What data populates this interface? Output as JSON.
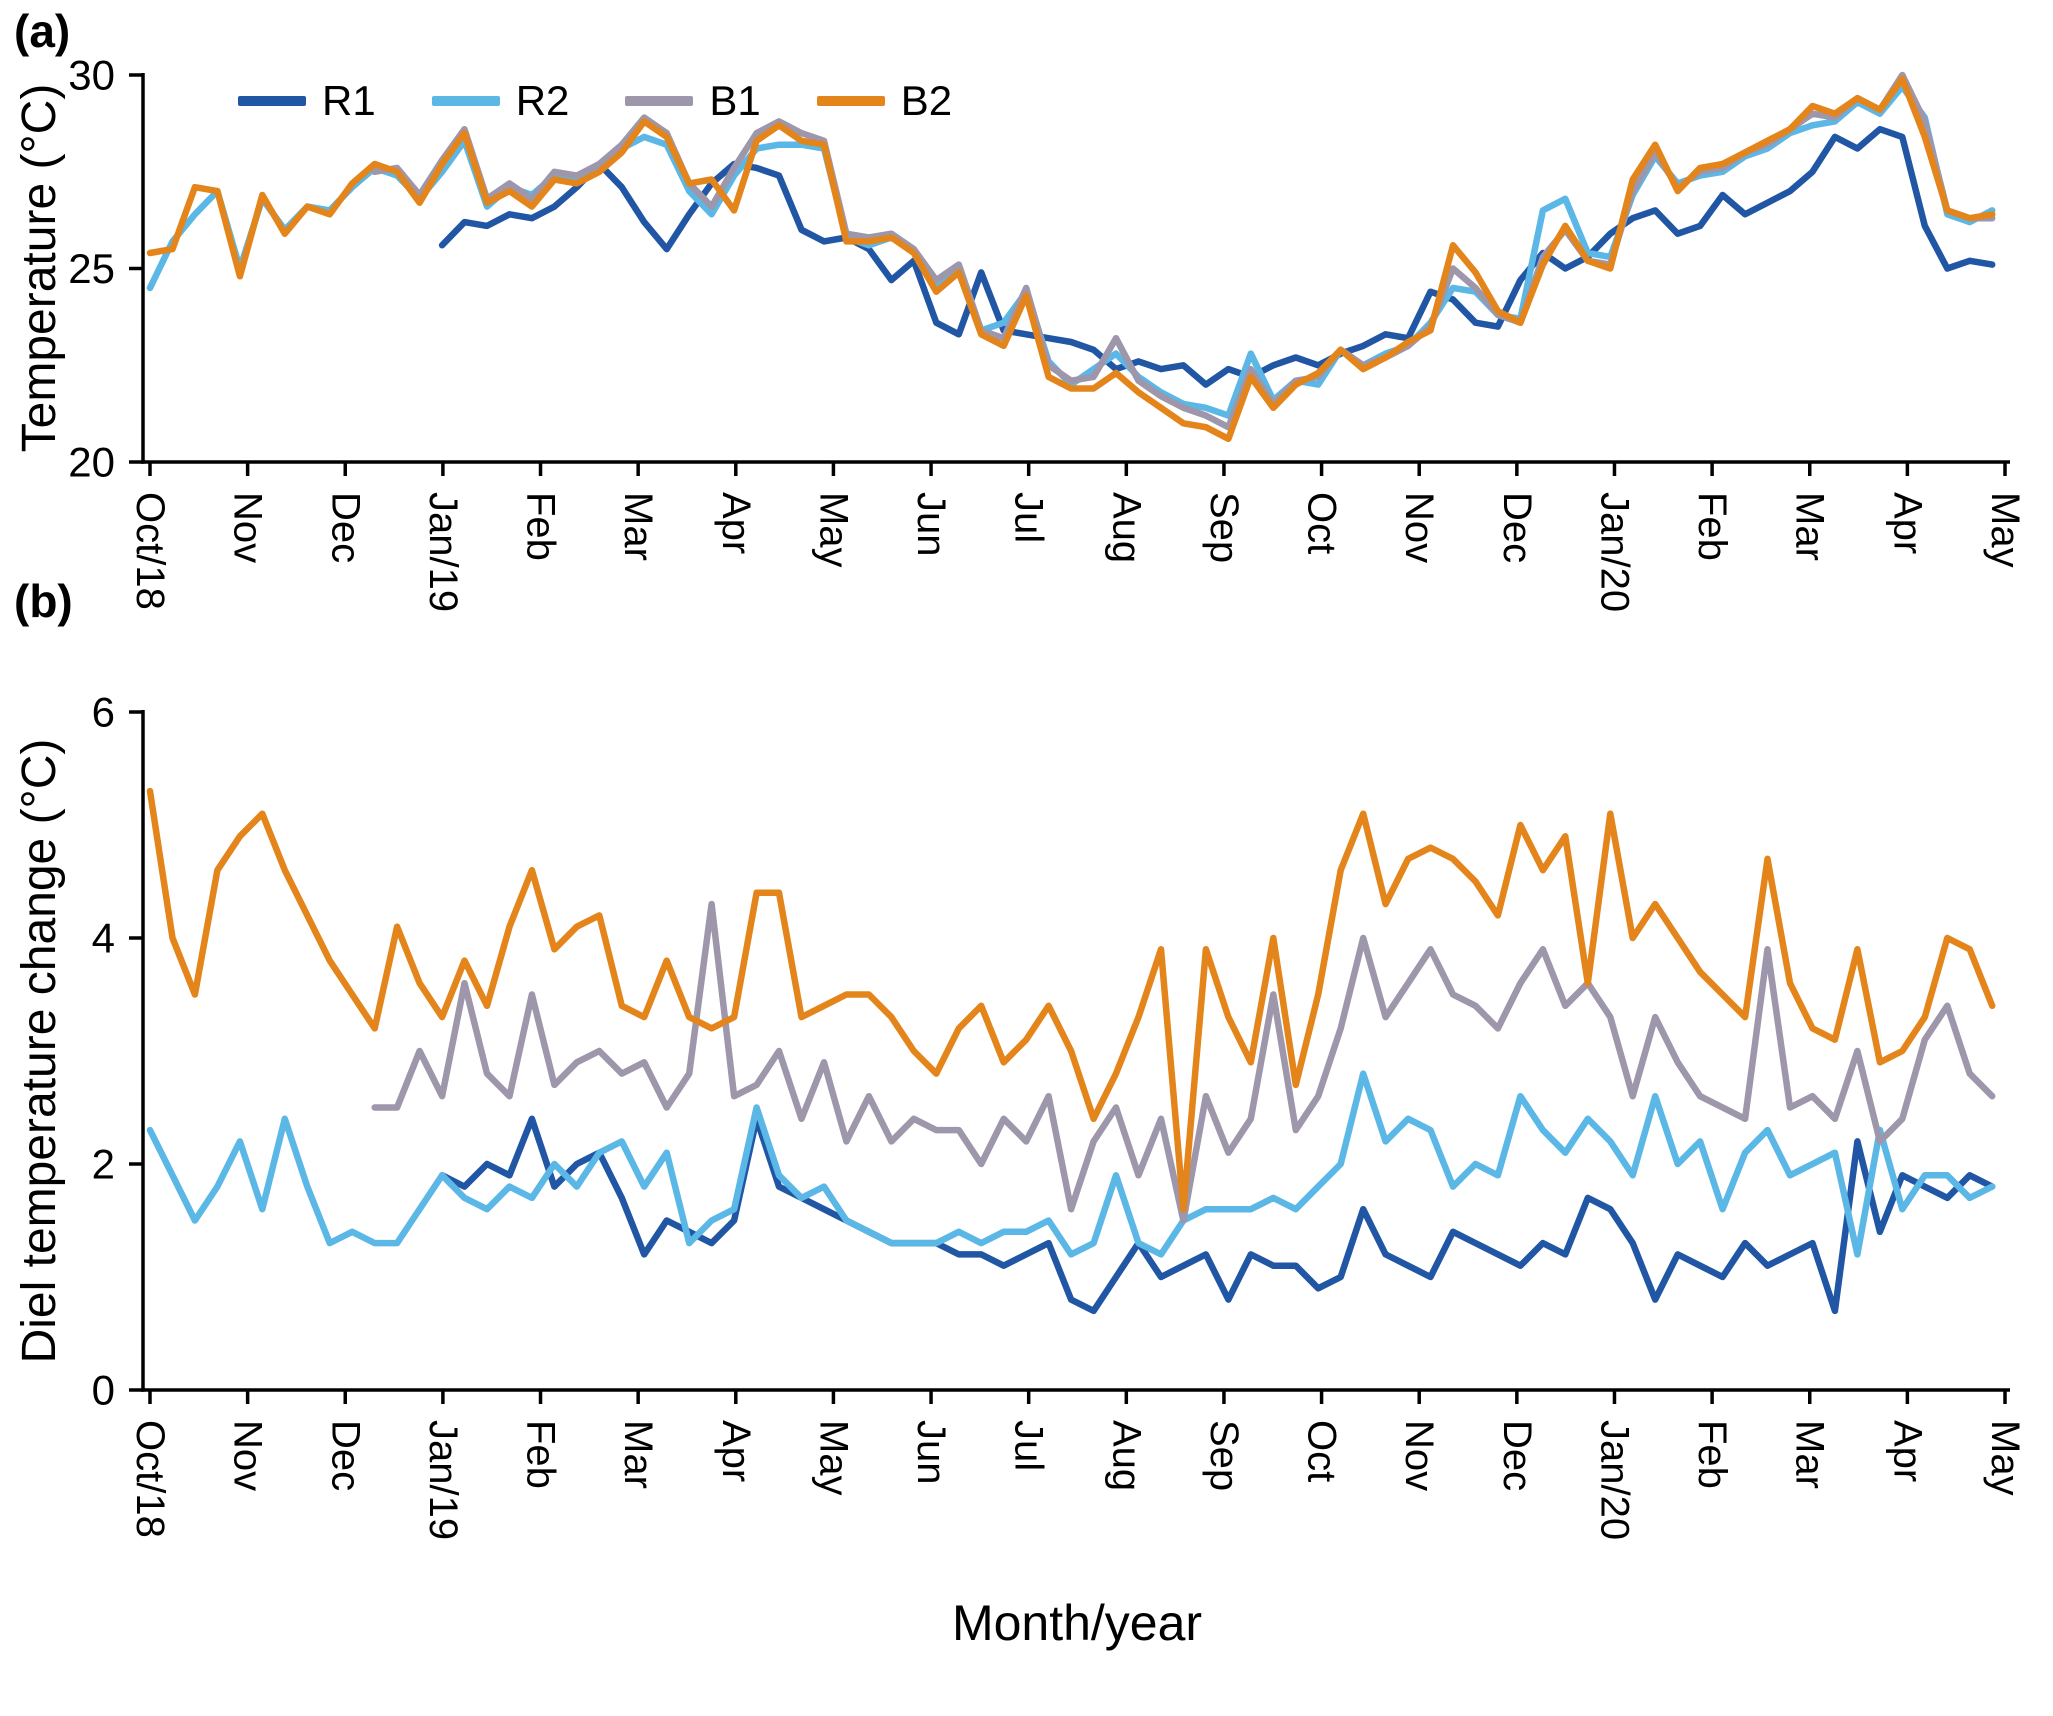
{
  "figure": {
    "panel_a_label": "(a)",
    "panel_b_label": "(b)",
    "xlabel": "Month/year"
  },
  "x_tick_labels": [
    "Oct/18",
    "Nov",
    "Dec",
    "Jan/19",
    "Feb",
    "Mar",
    "Apr",
    "May",
    "Jun",
    "Jul",
    "Aug",
    "Sep",
    "Oct",
    "Nov",
    "Dec",
    "Jan/20",
    "Feb",
    "Mar",
    "Apr",
    "May"
  ],
  "chart_data": [
    {
      "type": "line",
      "panel": "a",
      "title": "",
      "xlabel": "Month/year",
      "ylabel": "Temperature (°C)",
      "ylim": [
        20,
        30
      ],
      "yticks": [
        20,
        25,
        30
      ],
      "x_tick_labels": [
        "Oct/18",
        "Nov",
        "Dec",
        "Jan/19",
        "Feb",
        "Mar",
        "Apr",
        "May",
        "Jun",
        "Jul",
        "Aug",
        "Sep",
        "Oct",
        "Nov",
        "Dec",
        "Jan/20",
        "Feb",
        "Mar",
        "Apr",
        "May"
      ],
      "sampling": "weekly",
      "legend_position": "top-left",
      "grid": false,
      "series": [
        {
          "name": "R1",
          "color": "#2156a5",
          "values": [
            null,
            null,
            null,
            null,
            null,
            null,
            null,
            null,
            null,
            null,
            null,
            null,
            null,
            25.6,
            26.2,
            26.1,
            26.4,
            26.3,
            26.6,
            27.1,
            27.7,
            27.1,
            26.2,
            25.5,
            26.4,
            27.2,
            27.7,
            27.6,
            27.4,
            26.0,
            25.7,
            25.8,
            25.5,
            24.7,
            25.2,
            23.6,
            23.3,
            24.9,
            23.4,
            23.3,
            23.2,
            23.1,
            22.9,
            22.4,
            22.6,
            22.4,
            22.5,
            22.0,
            22.4,
            22.2,
            22.5,
            22.7,
            22.5,
            22.8,
            23.0,
            23.3,
            23.2,
            24.4,
            24.2,
            23.6,
            23.5,
            24.7,
            25.4,
            25.0,
            25.3,
            25.9,
            26.3,
            26.5,
            25.9,
            26.1,
            26.9,
            26.4,
            26.7,
            27.0,
            27.5,
            28.4,
            28.1,
            28.6,
            28.4,
            26.1,
            25.0,
            25.2,
            25.1
          ]
        },
        {
          "name": "R2",
          "color": "#5bb7e6",
          "values": [
            24.5,
            25.7,
            26.4,
            27.0,
            25.0,
            26.8,
            26.0,
            26.6,
            26.5,
            27.1,
            27.6,
            27.4,
            26.8,
            27.5,
            28.3,
            26.6,
            27.1,
            26.9,
            27.4,
            27.3,
            27.6,
            28.1,
            28.4,
            28.2,
            27.0,
            26.4,
            27.4,
            28.1,
            28.2,
            28.2,
            28.1,
            25.8,
            25.6,
            25.8,
            25.5,
            24.6,
            25.0,
            23.4,
            23.6,
            24.4,
            22.6,
            22.0,
            22.4,
            22.8,
            22.2,
            21.8,
            21.5,
            21.4,
            21.2,
            22.8,
            21.6,
            22.1,
            22.0,
            22.9,
            22.5,
            22.8,
            23.0,
            23.6,
            24.5,
            24.4,
            23.8,
            23.7,
            26.5,
            26.8,
            25.4,
            25.3,
            26.9,
            27.9,
            27.2,
            27.4,
            27.5,
            27.9,
            28.1,
            28.5,
            28.7,
            28.8,
            29.3,
            29.0,
            29.7,
            28.9,
            26.4,
            26.2,
            26.5
          ]
        },
        {
          "name": "B1",
          "color": "#9e96aa",
          "values": [
            null,
            null,
            null,
            null,
            null,
            null,
            null,
            null,
            null,
            null,
            27.5,
            27.6,
            26.9,
            27.8,
            28.6,
            26.8,
            27.2,
            26.8,
            27.5,
            27.4,
            27.7,
            28.2,
            28.9,
            28.5,
            27.2,
            26.6,
            27.6,
            28.5,
            28.8,
            28.5,
            28.3,
            25.9,
            25.8,
            25.9,
            25.5,
            24.7,
            25.1,
            23.4,
            23.2,
            24.5,
            22.5,
            22.1,
            22.2,
            23.2,
            22.1,
            21.7,
            21.4,
            21.2,
            20.9,
            22.4,
            21.5,
            22.1,
            22.2,
            22.9,
            22.5,
            22.7,
            23.0,
            23.5,
            25.0,
            24.5,
            23.8,
            23.6,
            25.3,
            26.0,
            25.2,
            25.1,
            27.0,
            28.0,
            27.1,
            27.5,
            27.6,
            28.0,
            28.2,
            28.6,
            29.0,
            28.9,
            29.4,
            29.1,
            30.0,
            28.8,
            26.5,
            26.3,
            26.3
          ]
        },
        {
          "name": "B2",
          "color": "#e3851b",
          "values": [
            25.4,
            25.5,
            27.1,
            27.0,
            24.8,
            26.9,
            25.9,
            26.6,
            26.4,
            27.2,
            27.7,
            27.5,
            26.7,
            27.7,
            28.5,
            26.7,
            27.0,
            26.6,
            27.3,
            27.2,
            27.5,
            28.0,
            28.8,
            28.4,
            27.2,
            27.3,
            26.5,
            28.3,
            28.7,
            28.3,
            28.2,
            25.7,
            25.7,
            25.8,
            25.4,
            24.4,
            24.9,
            23.3,
            23.0,
            24.3,
            22.2,
            21.9,
            21.9,
            22.3,
            21.8,
            21.4,
            21.0,
            20.9,
            20.6,
            22.2,
            21.4,
            22.0,
            22.3,
            22.9,
            22.4,
            22.7,
            23.1,
            23.4,
            25.6,
            24.9,
            23.9,
            23.6,
            25.1,
            26.1,
            25.2,
            25.0,
            27.3,
            28.2,
            27.0,
            27.6,
            27.7,
            28.0,
            28.3,
            28.6,
            29.2,
            29.0,
            29.4,
            29.1,
            29.9,
            28.4,
            26.5,
            26.3,
            26.4
          ]
        }
      ]
    },
    {
      "type": "line",
      "panel": "b",
      "title": "",
      "xlabel": "Month/year",
      "ylabel": "Diel temperature change (°C)",
      "ylim": [
        0,
        6
      ],
      "yticks": [
        0,
        2,
        4,
        6
      ],
      "x_tick_labels": [
        "Oct/18",
        "Nov",
        "Dec",
        "Jan/19",
        "Feb",
        "Mar",
        "Apr",
        "May",
        "Jun",
        "Jul",
        "Aug",
        "Sep",
        "Oct",
        "Nov",
        "Dec",
        "Jan/20",
        "Feb",
        "Mar",
        "Apr",
        "May"
      ],
      "sampling": "weekly",
      "grid": false,
      "series": [
        {
          "name": "R1",
          "color": "#2156a5",
          "values": [
            null,
            null,
            null,
            null,
            null,
            null,
            null,
            null,
            null,
            null,
            null,
            null,
            null,
            1.9,
            1.8,
            2.0,
            1.9,
            2.4,
            1.8,
            2.0,
            2.1,
            1.7,
            1.2,
            1.5,
            1.4,
            1.3,
            1.5,
            2.4,
            1.8,
            1.7,
            1.6,
            1.5,
            1.4,
            1.3,
            1.3,
            1.3,
            1.2,
            1.2,
            1.1,
            1.2,
            1.3,
            0.8,
            0.7,
            1.0,
            1.3,
            1.0,
            1.1,
            1.2,
            0.8,
            1.2,
            1.1,
            1.1,
            0.9,
            1.0,
            1.6,
            1.2,
            1.1,
            1.0,
            1.4,
            1.3,
            1.2,
            1.1,
            1.3,
            1.2,
            1.7,
            1.6,
            1.3,
            0.8,
            1.2,
            1.1,
            1.0,
            1.3,
            1.1,
            1.2,
            1.3,
            0.7,
            2.2,
            1.4,
            1.9,
            1.8,
            1.7,
            1.9,
            1.8
          ]
        },
        {
          "name": "R2",
          "color": "#5bb7e6",
          "values": [
            2.3,
            1.9,
            1.5,
            1.8,
            2.2,
            1.6,
            2.4,
            1.8,
            1.3,
            1.4,
            1.3,
            1.3,
            1.6,
            1.9,
            1.7,
            1.6,
            1.8,
            1.7,
            2.0,
            1.8,
            2.1,
            2.2,
            1.8,
            2.1,
            1.3,
            1.5,
            1.6,
            2.5,
            1.9,
            1.7,
            1.8,
            1.5,
            1.4,
            1.3,
            1.3,
            1.3,
            1.4,
            1.3,
            1.4,
            1.4,
            1.5,
            1.2,
            1.3,
            1.9,
            1.3,
            1.2,
            1.5,
            1.6,
            1.6,
            1.6,
            1.7,
            1.6,
            1.8,
            2.0,
            2.8,
            2.2,
            2.4,
            2.3,
            1.8,
            2.0,
            1.9,
            2.6,
            2.3,
            2.1,
            2.4,
            2.2,
            1.9,
            2.6,
            2.0,
            2.2,
            1.6,
            2.1,
            2.3,
            1.9,
            2.0,
            2.1,
            1.2,
            2.3,
            1.6,
            1.9,
            1.9,
            1.7,
            1.8
          ]
        },
        {
          "name": "B1",
          "color": "#9e96aa",
          "values": [
            null,
            null,
            null,
            null,
            null,
            null,
            null,
            null,
            null,
            null,
            2.5,
            2.5,
            3.0,
            2.6,
            3.6,
            2.8,
            2.6,
            3.5,
            2.7,
            2.9,
            3.0,
            2.8,
            2.9,
            2.5,
            2.8,
            4.3,
            2.6,
            2.7,
            3.0,
            2.4,
            2.9,
            2.2,
            2.6,
            2.2,
            2.4,
            2.3,
            2.3,
            2.0,
            2.4,
            2.2,
            2.6,
            1.6,
            2.2,
            2.5,
            1.9,
            2.4,
            1.5,
            2.6,
            2.1,
            2.4,
            3.5,
            2.3,
            2.6,
            3.2,
            4.0,
            3.3,
            3.6,
            3.9,
            3.5,
            3.4,
            3.2,
            3.6,
            3.9,
            3.4,
            3.6,
            3.3,
            2.6,
            3.3,
            2.9,
            2.6,
            2.5,
            2.4,
            3.9,
            2.5,
            2.6,
            2.4,
            3.0,
            2.2,
            2.4,
            3.1,
            3.4,
            2.8,
            2.6
          ]
        },
        {
          "name": "B2",
          "color": "#e3851b",
          "values": [
            5.3,
            4.0,
            3.5,
            4.6,
            4.9,
            5.1,
            4.6,
            4.2,
            3.8,
            3.5,
            3.2,
            4.1,
            3.6,
            3.3,
            3.8,
            3.4,
            4.1,
            4.6,
            3.9,
            4.1,
            4.2,
            3.4,
            3.3,
            3.8,
            3.3,
            3.2,
            3.3,
            4.4,
            4.4,
            3.3,
            3.4,
            3.5,
            3.5,
            3.3,
            3.0,
            2.8,
            3.2,
            3.4,
            2.9,
            3.1,
            3.4,
            3.0,
            2.4,
            2.8,
            3.3,
            3.9,
            1.6,
            3.9,
            3.3,
            2.9,
            4.0,
            2.7,
            3.5,
            4.6,
            5.1,
            4.3,
            4.7,
            4.8,
            4.7,
            4.5,
            4.2,
            5.0,
            4.6,
            4.9,
            3.6,
            5.1,
            4.0,
            4.3,
            4.0,
            3.7,
            3.5,
            3.3,
            4.7,
            3.6,
            3.2,
            3.1,
            3.9,
            2.9,
            3.0,
            3.3,
            4.0,
            3.9,
            3.4
          ]
        }
      ]
    }
  ]
}
